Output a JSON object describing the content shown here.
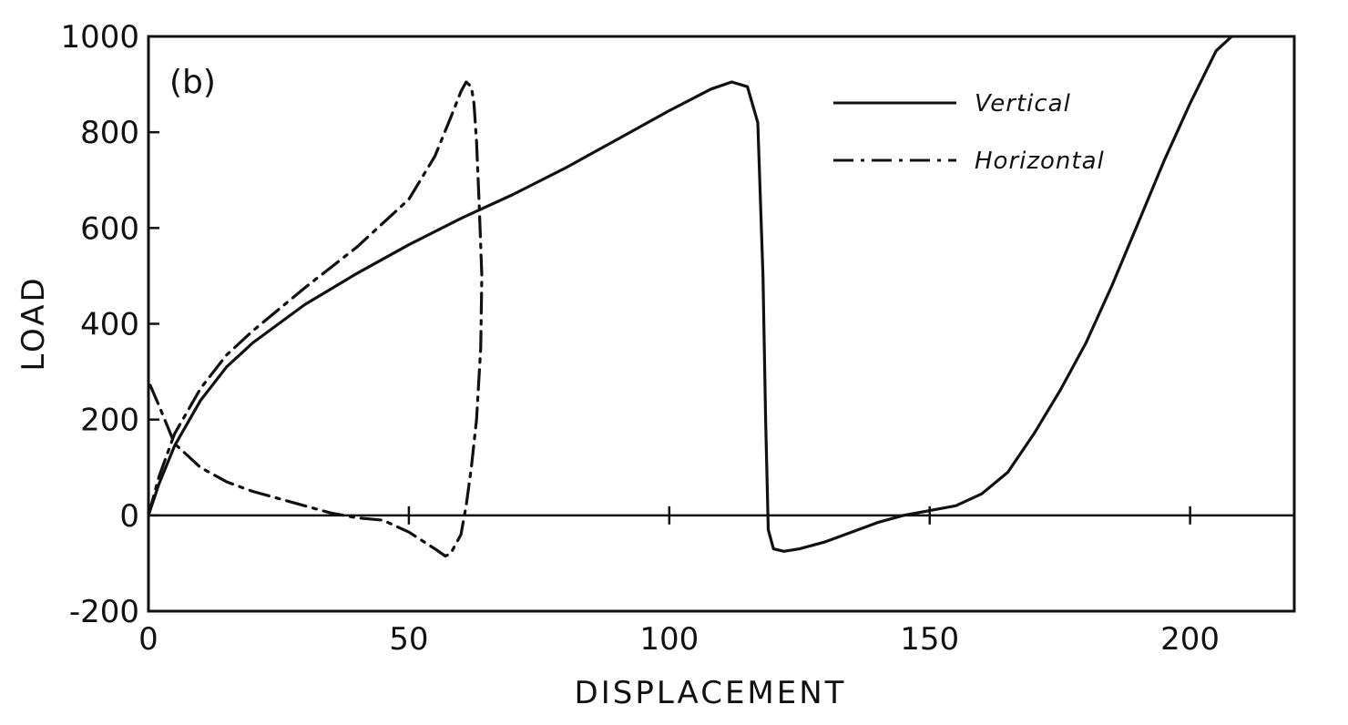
{
  "chart_data": {
    "type": "line",
    "panel_label": "(b)",
    "xlabel": "DISPLACEMENT",
    "ylabel": "LOAD",
    "xlim": [
      0,
      220
    ],
    "ylim": [
      -200,
      1000
    ],
    "xticks": [
      0,
      50,
      100,
      150,
      200
    ],
    "yticks": [
      -200,
      0,
      200,
      400,
      600,
      800,
      1000
    ],
    "xtick_labels": [
      "0",
      "50",
      "100",
      "150",
      "200"
    ],
    "ytick_labels": [
      "-200",
      "0",
      "200",
      "400",
      "600",
      "800",
      "1000"
    ],
    "grid": false,
    "zero_line": true,
    "legend_position": "top-right",
    "series": [
      {
        "name": "Vertical",
        "style": "solid",
        "x": [
          0,
          2,
          5,
          10,
          15,
          20,
          30,
          40,
          50,
          60,
          70,
          80,
          90,
          100,
          108,
          112,
          115,
          117,
          118,
          118.5,
          119,
          120,
          122,
          125,
          130,
          135,
          140,
          145,
          150,
          155,
          160,
          165,
          170,
          175,
          180,
          185,
          190,
          195,
          200,
          205,
          208
        ],
        "y": [
          0,
          65,
          145,
          240,
          310,
          360,
          440,
          505,
          565,
          620,
          670,
          725,
          785,
          845,
          890,
          905,
          895,
          820,
          500,
          200,
          -30,
          -70,
          -75,
          -70,
          -55,
          -35,
          -15,
          0,
          10,
          20,
          45,
          90,
          170,
          260,
          360,
          480,
          610,
          740,
          860,
          970,
          1000
        ]
      },
      {
        "name": "Horizontal",
        "style": "dash-dot",
        "x": [
          0,
          2,
          5,
          10,
          15,
          20,
          30,
          40,
          50,
          55,
          58,
          60,
          61,
          62,
          62.5,
          63,
          63.5,
          64,
          63.8,
          63,
          62,
          61,
          60,
          58,
          57,
          55,
          50,
          45,
          40,
          35,
          30,
          25,
          20,
          15,
          10,
          5,
          2,
          0
        ],
        "y": [
          0,
          80,
          170,
          265,
          335,
          385,
          475,
          560,
          660,
          750,
          830,
          885,
          905,
          895,
          860,
          780,
          650,
          500,
          350,
          200,
          100,
          20,
          -40,
          -80,
          -85,
          -70,
          -35,
          -10,
          -5,
          5,
          20,
          35,
          50,
          70,
          100,
          150,
          230,
          280
        ]
      }
    ]
  }
}
